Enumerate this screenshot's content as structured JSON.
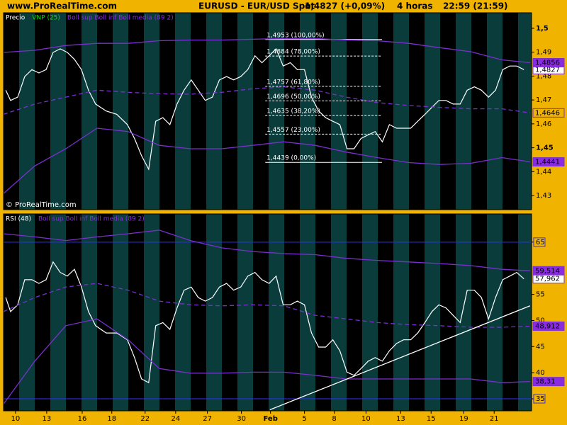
{
  "header": {
    "site": "www.ProRealTime.com",
    "title": "EURUSD - EUR/USD Spot",
    "price": "1,4827 (+0,09%)",
    "timeframe": "4 horas",
    "time": "22:59 (21:59)"
  },
  "chart_data": [
    {
      "type": "line",
      "legend": [
        {
          "text": "Precio",
          "color": "#ffffff"
        },
        {
          "text": "VNP (25)",
          "color": "#00e000"
        },
        {
          "text": "Boll sup Boll inf Boll media (89 2)",
          "color": "#8a2be2"
        }
      ],
      "annotation": "© ProRealTime.com",
      "xlim": [
        0,
        33.9
      ],
      "ylim": [
        1.4241,
        1.5065
      ],
      "yticks": [
        {
          "value": 1.5,
          "label": "1,5"
        },
        {
          "value": 1.49,
          "label": "1,49"
        },
        {
          "value": 1.48,
          "label": "1,48"
        },
        {
          "value": 1.47,
          "label": "1,47"
        },
        {
          "value": 1.46,
          "label": "1,46"
        },
        {
          "value": 1.45,
          "label": "1,45"
        },
        {
          "value": 1.44,
          "label": "1,44"
        },
        {
          "value": 1.43,
          "label": "1,43"
        }
      ],
      "series": [
        {
          "color": "#ffffff",
          "x": [
            0.14,
            0.45,
            0.91,
            1.36,
            1.82,
            2.27,
            2.73,
            3.18,
            3.64,
            4.09,
            4.55,
            5,
            5.45,
            5.91,
            6.59,
            7.27,
            7.95,
            8.41,
            8.86,
            9.32,
            9.77,
            10.23,
            10.68,
            11.14,
            11.59,
            12.05,
            12.5,
            12.95,
            13.41,
            13.86,
            14.32,
            14.77,
            15.23,
            15.68,
            16.14,
            16.59,
            17.05,
            17.5,
            17.95,
            18.41,
            18.86,
            19.32,
            19.77,
            20.23,
            20.68,
            21.14,
            21.59,
            22.05,
            22.5,
            22.95,
            23.41,
            23.86,
            24.32,
            24.77,
            25.23,
            25.68,
            26.14,
            26.59,
            27.05,
            27.5,
            27.95,
            28.41,
            28.86,
            29.32,
            29.77,
            30.23,
            30.68,
            31.14,
            31.59,
            32.05,
            32.5,
            32.95,
            33.41
          ],
          "values": [
            1.4741,
            1.4698,
            1.4712,
            1.4798,
            1.4827,
            1.4813,
            1.4827,
            1.4899,
            1.4914,
            1.4899,
            1.487,
            1.4827,
            1.4741,
            1.4683,
            1.4654,
            1.464,
            1.4597,
            1.4539,
            1.4467,
            1.441,
            1.4611,
            1.4626,
            1.4597,
            1.4683,
            1.4741,
            1.4784,
            1.4741,
            1.4698,
            1.4712,
            1.4784,
            1.4798,
            1.4784,
            1.4798,
            1.4827,
            1.4885,
            1.4856,
            1.4885,
            1.4914,
            1.4842,
            1.4856,
            1.4827,
            1.4827,
            1.4712,
            1.4654,
            1.4626,
            1.4611,
            1.4597,
            1.4496,
            1.4496,
            1.4539,
            1.4554,
            1.4568,
            1.4525,
            1.4597,
            1.4582,
            1.4582,
            1.4582,
            1.4611,
            1.464,
            1.4669,
            1.4698,
            1.4698,
            1.4683,
            1.4683,
            1.4741,
            1.4755,
            1.4741,
            1.4712,
            1.4741,
            1.4827,
            1.4842,
            1.4842,
            1.4827
          ],
          "end_label": "1,4827",
          "label_bg": "#ffffff"
        },
        {
          "color": "#7b2fd0",
          "x": [
            0,
            2,
            4,
            6,
            8,
            10,
            12,
            14,
            16,
            18,
            20,
            22,
            24,
            26,
            28,
            30,
            32,
            33.8
          ],
          "values": [
            1.4899,
            1.4908,
            1.4928,
            1.4937,
            1.4937,
            1.4948,
            1.4951,
            1.4951,
            1.4954,
            1.4957,
            1.4957,
            1.4951,
            1.4948,
            1.4937,
            1.4919,
            1.4902,
            1.4868,
            1.4856
          ],
          "end_label": "1,4856",
          "label_bg": "#8a2be2"
        },
        {
          "color": "#7b2fd0",
          "dash": true,
          "x": [
            0,
            2,
            4,
            6,
            8,
            10,
            12,
            14,
            16,
            18,
            20,
            22,
            24,
            26,
            28,
            30,
            32,
            33.8
          ],
          "values": [
            1.464,
            1.4683,
            1.4712,
            1.4741,
            1.4732,
            1.4726,
            1.4724,
            1.4732,
            1.4747,
            1.4755,
            1.4741,
            1.4712,
            1.4689,
            1.4677,
            1.4669,
            1.4663,
            1.4663,
            1.4646
          ],
          "end_label": "1,4646",
          "label_bg": "#f0b400"
        },
        {
          "color": "#7b2fd0",
          "x": [
            0,
            2,
            4,
            6,
            8,
            10,
            12,
            14,
            16,
            18,
            20,
            22,
            24,
            26,
            28,
            30,
            32,
            33.8
          ],
          "values": [
            1.4309,
            1.4424,
            1.4496,
            1.4582,
            1.4568,
            1.451,
            1.4496,
            1.4496,
            1.451,
            1.4525,
            1.451,
            1.4482,
            1.4459,
            1.4438,
            1.443,
            1.4435,
            1.4459,
            1.4441
          ],
          "end_label": "1,4441",
          "label_bg": "#8a2be2"
        }
      ],
      "fibonacci": {
        "x": [
          16.8,
          24.3
        ],
        "levels": [
          {
            "value": 1.4953,
            "label": "1,4953 (100,00%)"
          },
          {
            "value": 1.4884,
            "label": "1,4884 (78,00%)"
          },
          {
            "value": 1.4757,
            "label": "1,4757 (61,80%)"
          },
          {
            "value": 1.4696,
            "label": "1,4696 (50,00%)"
          },
          {
            "value": 1.4635,
            "label": "1,4635 (38,20%)"
          },
          {
            "value": 1.4557,
            "label": "1,4557 (23,00%)"
          },
          {
            "value": 1.4439,
            "label": "1,4439 (0,00%)"
          }
        ]
      }
    },
    {
      "type": "line",
      "legend": [
        {
          "text": "RSI (48)",
          "color": "#ffffff"
        },
        {
          "text": "Boll sup Boll inf Boll media (89 2)",
          "color": "#8a2be2"
        }
      ],
      "xlim": [
        0,
        33.9
      ],
      "ylim": [
        32.7,
        70.4
      ],
      "yticks": [
        35,
        40,
        45,
        50,
        55,
        65
      ],
      "hlines": [
        65,
        35
      ],
      "xticks": [
        {
          "value": 0.77,
          "label": "10"
        },
        {
          "value": 2.77,
          "label": "13"
        },
        {
          "value": 5.05,
          "label": "16"
        },
        {
          "value": 6.95,
          "label": "18"
        },
        {
          "value": 9.09,
          "label": "22"
        },
        {
          "value": 11.05,
          "label": "24"
        },
        {
          "value": 13.09,
          "label": "27"
        },
        {
          "value": 15.27,
          "label": "30"
        },
        {
          "value": 17.14,
          "label": "Feb"
        },
        {
          "value": 19.32,
          "label": "5"
        },
        {
          "value": 21.23,
          "label": "8"
        },
        {
          "value": 23.27,
          "label": "10"
        },
        {
          "value": 25.5,
          "label": "13"
        },
        {
          "value": 27.45,
          "label": "15"
        },
        {
          "value": 29.55,
          "label": "19"
        },
        {
          "value": 31.5,
          "label": "21"
        }
      ],
      "series": [
        {
          "color": "#ffffff",
          "x": [
            0.14,
            0.45,
            0.91,
            1.36,
            1.82,
            2.27,
            2.73,
            3.18,
            3.64,
            4.09,
            4.55,
            5,
            5.45,
            5.91,
            6.59,
            7.27,
            7.95,
            8.41,
            8.86,
            9.32,
            9.77,
            10.23,
            10.68,
            11.14,
            11.59,
            12.05,
            12.5,
            12.95,
            13.41,
            13.86,
            14.32,
            14.77,
            15.23,
            15.68,
            16.14,
            16.59,
            17.05,
            17.5,
            17.95,
            18.41,
            18.86,
            19.32,
            19.77,
            20.23,
            20.68,
            21.14,
            21.59,
            22.05,
            22.5,
            22.95,
            23.41,
            23.86,
            24.32,
            24.77,
            25.23,
            25.68,
            26.14,
            26.59,
            27.05,
            27.5,
            27.95,
            28.41,
            28.86,
            29.32,
            29.77,
            30.23,
            30.68,
            31.14,
            31.59,
            32.05,
            32.5,
            32.95,
            33.41
          ],
          "values": [
            54.4,
            51.7,
            53.0,
            57.8,
            57.8,
            57.1,
            57.8,
            61.2,
            59.2,
            58.5,
            59.8,
            56.4,
            51.7,
            49.0,
            47.6,
            47.6,
            46.3,
            42.9,
            38.8,
            38.1,
            49.0,
            49.6,
            48.3,
            52.4,
            55.8,
            56.4,
            54.4,
            53.7,
            54.4,
            56.4,
            57.1,
            55.8,
            56.4,
            58.5,
            59.2,
            57.8,
            57.1,
            58.5,
            53.0,
            53.0,
            53.7,
            53.0,
            47.6,
            44.9,
            44.9,
            46.3,
            44.2,
            40.1,
            39.5,
            40.8,
            42.2,
            42.9,
            42.2,
            44.2,
            45.6,
            46.3,
            46.3,
            47.6,
            49.6,
            51.7,
            53.0,
            52.4,
            51.0,
            49.6,
            55.8,
            55.8,
            54.4,
            50.3,
            54.4,
            57.8,
            58.5,
            59.2,
            57.962
          ],
          "end_label": "57,962",
          "label_bg": "#ffffff"
        },
        {
          "color": "#7b2fd0",
          "x": [
            0,
            2,
            4,
            6,
            8,
            10,
            12,
            14,
            16,
            18,
            20,
            22,
            24,
            26,
            28,
            30,
            32,
            33.8
          ],
          "values": [
            66.6,
            66.0,
            65.3,
            66.0,
            66.6,
            67.3,
            65.3,
            63.9,
            63.2,
            62.8,
            62.6,
            61.9,
            61.5,
            61.2,
            60.9,
            60.5,
            59.8,
            59.514
          ],
          "end_label": "59,514",
          "label_bg": "#8a2be2"
        },
        {
          "color": "#7b2fd0",
          "dash": true,
          "x": [
            0,
            2,
            4,
            6,
            8,
            10,
            12,
            14,
            16,
            18,
            20,
            22,
            24,
            26,
            28,
            30,
            32,
            33.8
          ],
          "values": [
            51.7,
            54.4,
            56.4,
            57.1,
            55.8,
            53.7,
            53.0,
            52.8,
            53.0,
            52.8,
            51.0,
            50.3,
            49.6,
            49.2,
            49.0,
            48.7,
            48.7,
            48.912
          ],
          "end_label": "48,912",
          "label_bg": "#8a2be2"
        },
        {
          "color": "#7b2fd0",
          "x": [
            0,
            2,
            4,
            6,
            8,
            10,
            12,
            14,
            16,
            18,
            20,
            22,
            24,
            26,
            28,
            30,
            32,
            33.8
          ],
          "values": [
            34.0,
            42.2,
            49.0,
            50.3,
            46.3,
            40.8,
            39.9,
            39.9,
            40.1,
            40.1,
            39.5,
            38.8,
            38.8,
            38.8,
            38.8,
            38.8,
            38.1,
            38.31
          ],
          "end_label": "38,31",
          "label_bg": "#8a2be2"
        }
      ],
      "trendline": {
        "x": [
          17.1,
          33.8
        ],
        "values": [
          32.9,
          52.8
        ]
      }
    }
  ]
}
